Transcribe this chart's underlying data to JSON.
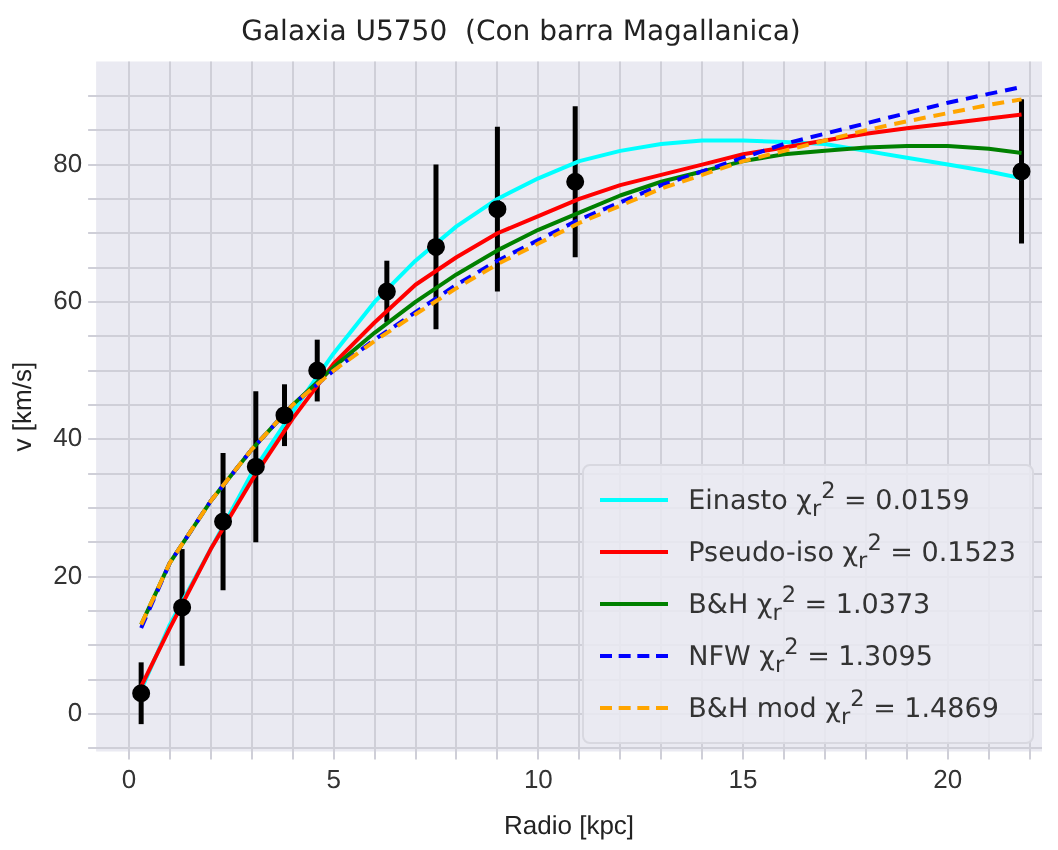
{
  "chart_data": {
    "type": "line",
    "title": "Galaxia U5750  (Con barra Magallanica)",
    "xlabel": "Radio [kpc]",
    "ylabel": "v [km/s]",
    "xlim": [
      -0.8,
      22.3
    ],
    "ylim": [
      -5.5,
      95
    ],
    "xticks": [
      {
        "value": 0,
        "label": "0"
      },
      {
        "value": 1,
        "label": null
      },
      {
        "value": 2,
        "label": null
      },
      {
        "value": 3,
        "label": null
      },
      {
        "value": 4,
        "label": null
      },
      {
        "value": 5,
        "label": "5"
      },
      {
        "value": 6,
        "label": null
      },
      {
        "value": 7,
        "label": null
      },
      {
        "value": 8,
        "label": null
      },
      {
        "value": 9,
        "label": null
      },
      {
        "value": 10,
        "label": "10"
      },
      {
        "value": 11,
        "label": null
      },
      {
        "value": 12,
        "label": null
      },
      {
        "value": 13,
        "label": null
      },
      {
        "value": 14,
        "label": null
      },
      {
        "value": 15,
        "label": "15"
      },
      {
        "value": 16,
        "label": null
      },
      {
        "value": 17,
        "label": null
      },
      {
        "value": 18,
        "label": null
      },
      {
        "value": 19,
        "label": null
      },
      {
        "value": 20,
        "label": "20"
      },
      {
        "value": 21,
        "label": null
      },
      {
        "value": 22,
        "label": null
      }
    ],
    "yticks": [
      {
        "value": -5,
        "label": null
      },
      {
        "value": 0,
        "label": "0"
      },
      {
        "value": 5,
        "label": null
      },
      {
        "value": 10,
        "label": null
      },
      {
        "value": 15,
        "label": null
      },
      {
        "value": 20,
        "label": "20"
      },
      {
        "value": 25,
        "label": null
      },
      {
        "value": 30,
        "label": null
      },
      {
        "value": 35,
        "label": null
      },
      {
        "value": 40,
        "label": "40"
      },
      {
        "value": 45,
        "label": null
      },
      {
        "value": 50,
        "label": null
      },
      {
        "value": 55,
        "label": null
      },
      {
        "value": 60,
        "label": "60"
      },
      {
        "value": 65,
        "label": null
      },
      {
        "value": 70,
        "label": null
      },
      {
        "value": 75,
        "label": null
      },
      {
        "value": 80,
        "label": "80"
      },
      {
        "value": 85,
        "label": null
      },
      {
        "value": 90,
        "label": null
      }
    ],
    "grid": true,
    "legend": "bottom right",
    "marker": "none",
    "series": [
      {
        "name": "Einasto χ$_{r}$$^{2}$ =  0.0159",
        "color": "#00ffff",
        "line_style": "solid",
        "x": [
          0.3,
          1,
          2,
          3,
          4,
          5,
          6,
          7,
          8,
          9,
          10,
          11,
          12,
          13,
          14,
          15,
          16,
          17,
          18,
          19,
          20,
          21,
          21.8
        ],
        "values": [
          3.5,
          13,
          24,
          35,
          44,
          52.5,
          60,
          66,
          71,
          75,
          78,
          80.5,
          82,
          83,
          83.5,
          83.5,
          83.3,
          83,
          82,
          81,
          80,
          79,
          78
        ]
      },
      {
        "name": "Pseudo-iso χ$_{r}$$^{2}$ = 0.1523",
        "color": "#ff0000",
        "line_style": "solid",
        "x": [
          0.3,
          1,
          2,
          3,
          4,
          5,
          6,
          7,
          8,
          9,
          10,
          11,
          12,
          13,
          14,
          15,
          16,
          17,
          18,
          19,
          20,
          21,
          21.8
        ],
        "values": [
          4,
          12.5,
          24,
          34,
          43,
          51,
          57,
          62.5,
          66.5,
          70,
          72.5,
          75,
          77,
          78.5,
          80,
          81.5,
          82.5,
          83.5,
          84.5,
          85.3,
          86,
          86.7,
          87.3
        ]
      },
      {
        "name": "B&H χ$_{r}$$^{2}$ = 1.0373",
        "color": "#008000",
        "line_style": "solid",
        "x": [
          0.3,
          1,
          2,
          3,
          4,
          5,
          6,
          7,
          8,
          9,
          10,
          11,
          12,
          13,
          14,
          15,
          16,
          17,
          18,
          19,
          20,
          21,
          21.8
        ],
        "values": [
          13,
          22,
          31,
          38.5,
          45,
          50.5,
          55.5,
          60,
          64,
          67.5,
          70.5,
          73,
          75.5,
          77.5,
          79,
          80.5,
          81.5,
          82,
          82.5,
          82.7,
          82.7,
          82.3,
          81.7
        ]
      },
      {
        "name": "NFW χ$_{r}$$^{2}$ = 1.3095",
        "color": "#0000ff",
        "line_style": "dashed",
        "x": [
          0.3,
          1,
          2,
          3,
          4,
          5,
          6,
          7,
          8,
          9,
          10,
          11,
          12,
          13,
          14,
          15,
          16,
          17,
          18,
          19,
          20,
          21,
          21.8
        ],
        "values": [
          12.5,
          22,
          31,
          38.5,
          45,
          50,
          54.5,
          58.5,
          62.5,
          66,
          69,
          72,
          74.5,
          77,
          79,
          81,
          83,
          84.5,
          86,
          87.5,
          89,
          90.3,
          91.3
        ]
      },
      {
        "name": "B&H mod χ$_{r}$$^{2}$ = 1.4869",
        "color": "#ffa500",
        "line_style": "dashed",
        "x": [
          0.3,
          1,
          2,
          3,
          4,
          5,
          6,
          7,
          8,
          9,
          10,
          11,
          12,
          13,
          14,
          15,
          16,
          17,
          18,
          19,
          20,
          21,
          21.8
        ],
        "values": [
          13,
          22,
          31,
          38.5,
          45,
          50,
          54.3,
          58.2,
          62,
          65.5,
          68.5,
          71.5,
          74,
          76.5,
          78.5,
          80.5,
          82,
          83.5,
          85,
          86.3,
          87.5,
          88.7,
          89.5
        ]
      },
      {
        "type": "scatter",
        "color": "#000000",
        "marker": "circle",
        "x": [
          0.3,
          1.3,
          2.3,
          3.1,
          3.8,
          4.6,
          6.3,
          7.5,
          9,
          10.9,
          21.8
        ],
        "values": [
          3,
          15.5,
          28,
          36,
          43.5,
          50,
          61.5,
          68,
          73.5,
          77.5,
          79
        ],
        "errors": [
          4.5,
          8.5,
          10,
          11,
          4.5,
          4.5,
          4.5,
          12,
          12,
          11,
          10.5
        ]
      }
    ]
  }
}
